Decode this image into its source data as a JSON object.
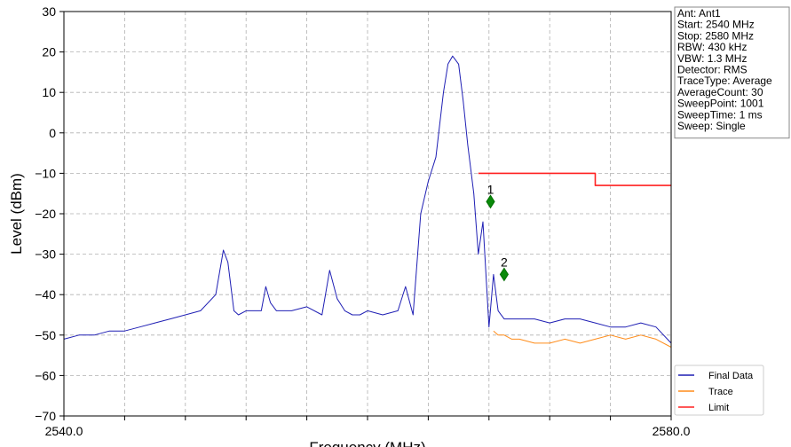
{
  "chart_data": {
    "type": "line",
    "xlabel": "Frequency (MHz)",
    "ylabel": "Level (dBm)",
    "xlim": [
      2540,
      2580
    ],
    "ylim": [
      -70,
      30
    ],
    "x_tick_labels": [
      {
        "value": 2540,
        "label": "2540.0"
      },
      {
        "value": 2580,
        "label": "2580.0"
      }
    ],
    "y_ticks": [
      30,
      20,
      10,
      0,
      -10,
      -20,
      -30,
      -40,
      -50,
      -60,
      -70
    ],
    "x_grid": [
      2544,
      2548,
      2552,
      2556,
      2560,
      2564,
      2568,
      2572,
      2576
    ],
    "grid": true,
    "legend_position": "bottom-right",
    "info_lines": [
      "Ant: Ant1",
      "Start: 2540 MHz",
      "Stop: 2580 MHz",
      "RBW: 430 kHz",
      "VBW: 1.3 MHz",
      "Detector: RMS",
      "TraceType: Average",
      "AverageCount: 30",
      "SweepPoint: 1001",
      "SweepTime: 1 ms",
      "Sweep: Single"
    ],
    "series": [
      {
        "name": "Final Data",
        "color": "#1f1fb4",
        "x": [
          2540,
          2541,
          2542,
          2543,
          2544,
          2545,
          2546,
          2547,
          2548,
          2549,
          2550,
          2550.5,
          2550.8,
          2551.2,
          2551.5,
          2552,
          2553,
          2553.3,
          2553.6,
          2554,
          2555,
          2556,
          2557,
          2557.5,
          2558,
          2558.5,
          2559,
          2559.5,
          2560,
          2561,
          2562,
          2562.5,
          2563,
          2563.5,
          2564,
          2564.5,
          2565,
          2565.3,
          2565.6,
          2566,
          2566.3,
          2566.6,
          2567,
          2567.3,
          2567.6,
          2568,
          2568.3,
          2568.6,
          2569,
          2569.5,
          2570,
          2571,
          2572,
          2573,
          2574,
          2575,
          2576,
          2577,
          2578,
          2579,
          2580
        ],
        "y": [
          -51,
          -50,
          -50,
          -49,
          -49,
          -48,
          -47,
          -46,
          -45,
          -44,
          -40,
          -29,
          -32,
          -44,
          -45,
          -44,
          -44,
          -38,
          -42,
          -44,
          -44,
          -43,
          -45,
          -34,
          -41,
          -44,
          -45,
          -45,
          -44,
          -45,
          -44,
          -38,
          -45,
          -20,
          -12,
          -6,
          10,
          17,
          19,
          17,
          8,
          -3,
          -15,
          -30,
          -22,
          -48,
          -35,
          -44,
          -46,
          -46,
          -46,
          -46,
          -47,
          -46,
          -46,
          -47,
          -48,
          -48,
          -47,
          -48,
          -52
        ],
        "points": [
          [
            2540,
            -51
          ],
          [
            2541,
            -50
          ],
          [
            2542,
            -50
          ],
          [
            2543,
            -49
          ],
          [
            2544,
            -49
          ],
          [
            2545,
            -48
          ],
          [
            2546,
            -47
          ],
          [
            2547,
            -46
          ],
          [
            2548,
            -45
          ],
          [
            2549,
            -44
          ],
          [
            2550,
            -40
          ],
          [
            2550.5,
            -29
          ],
          [
            2550.8,
            -32
          ],
          [
            2551.2,
            -44
          ],
          [
            2551.5,
            -45
          ],
          [
            2552,
            -44
          ],
          [
            2553,
            -44
          ],
          [
            2553.3,
            -38
          ],
          [
            2553.6,
            -42
          ],
          [
            2554,
            -44
          ],
          [
            2555,
            -44
          ],
          [
            2556,
            -43
          ],
          [
            2557,
            -45
          ],
          [
            2557.5,
            -34
          ],
          [
            2558,
            -41
          ],
          [
            2558.5,
            -44
          ],
          [
            2559,
            -45
          ],
          [
            2559.5,
            -45
          ],
          [
            2560,
            -44
          ],
          [
            2561,
            -45
          ],
          [
            2562,
            -44
          ],
          [
            2562.5,
            -38
          ],
          [
            2563,
            -45
          ],
          [
            2563.5,
            -20
          ],
          [
            2564,
            -12
          ],
          [
            2564.5,
            -6
          ],
          [
            2565,
            10
          ],
          [
            2565.3,
            17
          ],
          [
            2565.6,
            19
          ],
          [
            2566,
            17
          ],
          [
            2566.3,
            8
          ],
          [
            2566.6,
            -3
          ],
          [
            2567,
            -15
          ],
          [
            2567.3,
            -30
          ],
          [
            2567.6,
            -22
          ],
          [
            2568,
            -48
          ],
          [
            2568.3,
            -35
          ],
          [
            2568.6,
            -44
          ],
          [
            2569,
            -46
          ],
          [
            2569.5,
            -46
          ],
          [
            2570,
            -46
          ],
          [
            2571,
            -46
          ],
          [
            2572,
            -47
          ],
          [
            2573,
            -46
          ],
          [
            2574,
            -46
          ],
          [
            2575,
            -47
          ],
          [
            2576,
            -48
          ],
          [
            2577,
            -48
          ],
          [
            2578,
            -47
          ],
          [
            2579,
            -48
          ],
          [
            2580,
            -52
          ]
        ]
      },
      {
        "name": "Trace",
        "color": "#ff8c1a",
        "points": [
          [
            2568.3,
            -49
          ],
          [
            2568.6,
            -50
          ],
          [
            2569,
            -50
          ],
          [
            2569.5,
            -51
          ],
          [
            2570,
            -51
          ],
          [
            2571,
            -52
          ],
          [
            2572,
            -52
          ],
          [
            2573,
            -51
          ],
          [
            2574,
            -52
          ],
          [
            2575,
            -51
          ],
          [
            2576,
            -50
          ],
          [
            2577,
            -51
          ],
          [
            2578,
            -50
          ],
          [
            2579,
            -51
          ],
          [
            2580,
            -53
          ]
        ]
      },
      {
        "name": "Limit",
        "color": "#ff2020",
        "points": [
          [
            2567.3,
            -10
          ],
          [
            2575,
            -10
          ],
          [
            2575,
            -13
          ],
          [
            2580,
            -13
          ]
        ]
      }
    ],
    "markers": [
      {
        "label": "1",
        "x": 2568.1,
        "y": -17,
        "color": "#007000"
      },
      {
        "label": "2",
        "x": 2569.0,
        "y": -35,
        "color": "#007000"
      }
    ]
  }
}
